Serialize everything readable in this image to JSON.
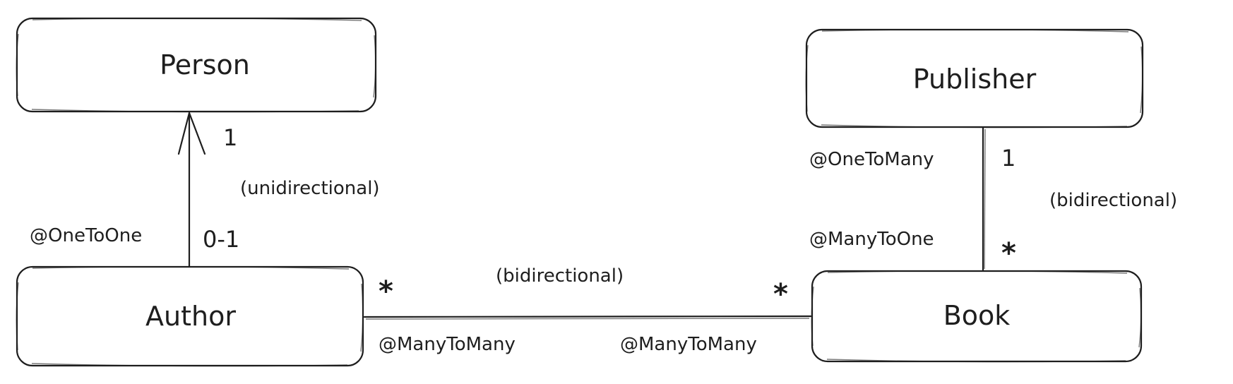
{
  "entities": {
    "person": "Person",
    "publisher": "Publisher",
    "author": "Author",
    "book": "Book"
  },
  "relations": {
    "person_author": {
      "multiplicity_person": "1",
      "multiplicity_author": "0-1",
      "direction": "(unidirectional)",
      "annotation": "@OneToOne"
    },
    "publisher_book": {
      "multiplicity_publisher": "1",
      "multiplicity_book": "*",
      "direction": "(bidirectional)",
      "annotation_publisher_side": "@OneToMany",
      "annotation_book_side": "@ManyToOne"
    },
    "author_book": {
      "multiplicity_author": "*",
      "multiplicity_book": "*",
      "direction": "(bidirectional)",
      "annotation_author_side": "@ManyToMany",
      "annotation_book_side": "@ManyToMany"
    }
  },
  "colors": {
    "stroke": "#1e1e1e",
    "background": "#ffffff"
  }
}
